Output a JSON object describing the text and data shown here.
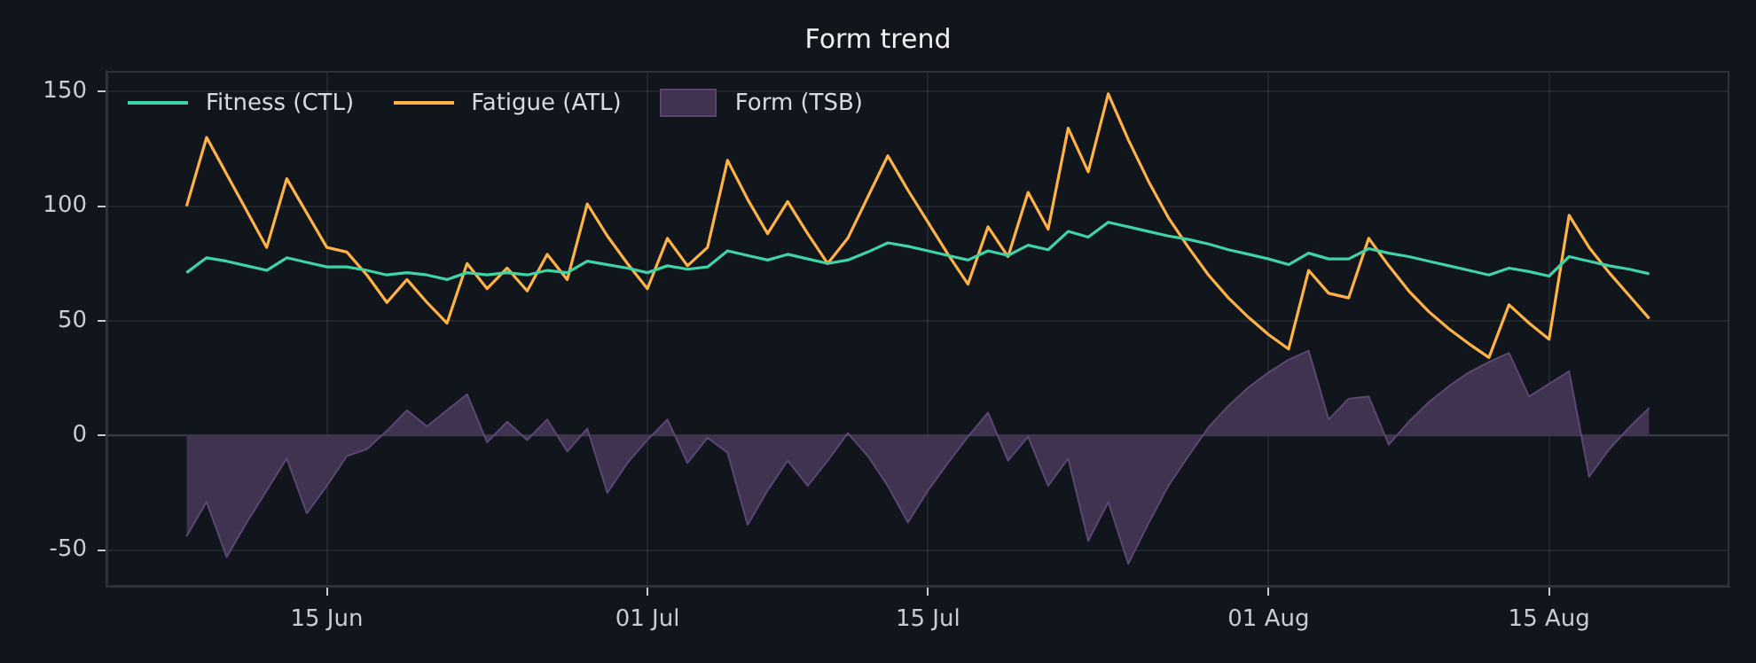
{
  "chart_data": {
    "type": "line",
    "title": "Form trend",
    "x": [
      "--06-08",
      "--06-09",
      "--06-10",
      "--06-11",
      "--06-12",
      "--06-13",
      "--06-14",
      "--06-15",
      "--06-16",
      "--06-17",
      "--06-18",
      "--06-19",
      "--06-20",
      "--06-21",
      "--06-22",
      "--06-23",
      "--06-24",
      "--06-25",
      "--06-26",
      "--06-27",
      "--06-28",
      "--06-29",
      "--06-30",
      "--07-01",
      "--07-02",
      "--07-03",
      "--07-04",
      "--07-05",
      "--07-06",
      "--07-07",
      "--07-08",
      "--07-09",
      "--07-10",
      "--07-11",
      "--07-12",
      "--07-13",
      "--07-14",
      "--07-15",
      "--07-16",
      "--07-17",
      "--07-18",
      "--07-19",
      "--07-20",
      "--07-21",
      "--07-22",
      "--07-23",
      "--07-24",
      "--07-25",
      "--07-26",
      "--07-27",
      "--07-28",
      "--07-29",
      "--07-30",
      "--07-31",
      "--08-01",
      "--08-02",
      "--08-03",
      "--08-04",
      "--08-05",
      "--08-06",
      "--08-07",
      "--08-08",
      "--08-09",
      "--08-10",
      "--08-11",
      "--08-12",
      "--08-13",
      "--08-14",
      "--08-15",
      "--08-16",
      "--08-17",
      "--08-18",
      "--08-19",
      "--08-20"
    ],
    "series": [
      {
        "name": "Fitness (CTL)",
        "type": "line",
        "color": "#3fd3a5",
        "values": [
          71,
          77.5,
          76,
          74,
          72,
          77.5,
          75.5,
          73.5,
          73.5,
          72,
          70,
          71,
          70,
          68,
          71,
          70,
          71,
          70,
          72,
          71,
          76,
          74.5,
          73,
          71,
          74,
          72.5,
          73.5,
          80.5,
          78.5,
          76.5,
          79,
          77,
          75,
          76.5,
          80,
          84,
          82.5,
          80.5,
          78.5,
          76.5,
          80.5,
          78.5,
          83,
          81,
          89,
          86.5,
          93,
          91,
          89,
          87,
          85.5,
          83.5,
          81,
          79,
          77,
          74.5,
          79.5,
          77,
          77,
          81.5,
          79.5,
          78,
          76,
          74,
          72,
          70,
          73,
          71.5,
          69.5,
          78,
          76,
          74,
          72.5,
          70.5
        ]
      },
      {
        "name": "Fatigue (ATL)",
        "type": "line",
        "color": "#ffb347",
        "values": [
          100,
          130,
          114,
          98,
          82,
          112,
          97,
          82,
          80,
          70,
          58,
          68,
          58,
          49,
          75,
          64,
          73,
          63,
          79,
          68,
          101,
          87,
          75,
          64,
          86,
          74,
          82,
          120,
          103,
          88,
          102,
          88,
          75,
          86,
          104,
          122,
          107,
          93,
          79,
          66,
          91,
          78,
          106,
          90,
          134,
          115,
          149,
          129,
          111,
          95,
          82,
          70,
          60,
          51.5,
          44,
          37.7,
          72,
          62,
          60,
          86,
          74,
          63,
          54,
          46.5,
          40,
          34,
          57,
          49,
          42,
          96,
          82,
          71,
          61,
          51
        ]
      },
      {
        "name": "Form (TSB)",
        "type": "area",
        "color": "#40334f",
        "values": [
          -44,
          -29,
          -53,
          -38,
          -24,
          -10,
          -34,
          -22,
          -9,
          -6,
          2,
          11,
          4,
          11,
          18,
          -3,
          6,
          -2,
          7,
          -7,
          3,
          -25,
          -12,
          -2,
          7,
          -12,
          -1,
          -7.5,
          -39,
          -24,
          -11,
          -22,
          -11,
          1,
          -9,
          -22,
          -38,
          -24,
          -12,
          -0.5,
          10,
          -11,
          -0.5,
          -22,
          -10,
          -46,
          -29,
          -56,
          -38.5,
          -22,
          -9,
          3.5,
          13,
          21,
          27.5,
          33,
          37,
          7,
          16,
          17,
          -4,
          6,
          14.5,
          21.5,
          27.5,
          32,
          36,
          17,
          22.5,
          28,
          -18,
          -6,
          3.5,
          12
        ]
      }
    ],
    "xlim": [
      "--06-04",
      "--08-24"
    ],
    "xticks": [
      {
        "value": "--06-15",
        "label": "15 Jun"
      },
      {
        "value": "--07-01",
        "label": "01 Jul"
      },
      {
        "value": "--07-15",
        "label": "15 Jul"
      },
      {
        "value": "--08-01",
        "label": "01 Aug"
      },
      {
        "value": "--08-15",
        "label": "15 Aug"
      }
    ],
    "ylim": [
      -66,
      159
    ],
    "yticks": [
      -50,
      0,
      50,
      100,
      150
    ],
    "ref_lines": [
      {
        "axis": "y",
        "value": 0,
        "color": "#3a3f4b"
      }
    ],
    "grid": true,
    "legend": "top left",
    "marker": "none",
    "line_style": "solid"
  }
}
